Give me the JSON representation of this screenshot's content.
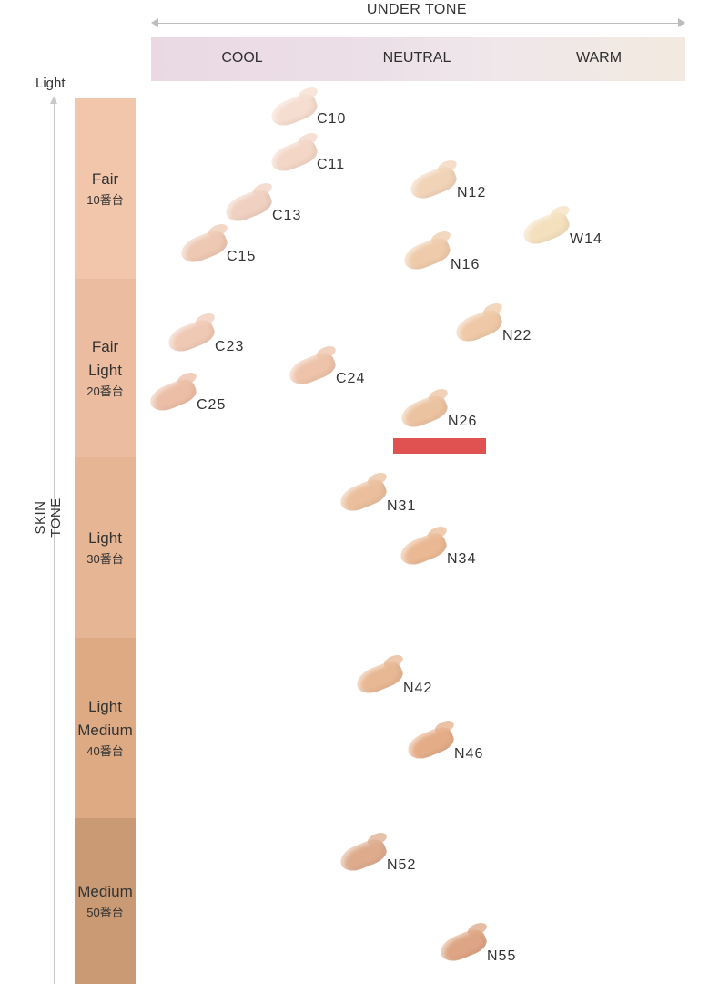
{
  "under_tone": {
    "title": "UNDER TONE",
    "bands": [
      "COOL",
      "NEUTRAL",
      "WARM"
    ]
  },
  "skin_tone": {
    "axis_label": "SKIN TONE",
    "light_label": "Light",
    "levels": [
      {
        "name_lines": [
          "Fair"
        ],
        "series": "10番台",
        "color": "#f2c6ab"
      },
      {
        "name_lines": [
          "Fair",
          "Light"
        ],
        "series": "20番台",
        "color": "#ebbc9f"
      },
      {
        "name_lines": [
          "Light"
        ],
        "series": "30番台",
        "color": "#e6b593"
      },
      {
        "name_lines": [
          "Light",
          "Medium"
        ],
        "series": "40番台",
        "color": "#ddaa84"
      },
      {
        "name_lines": [
          "Medium"
        ],
        "series": "50番台",
        "color": "#c99a74"
      }
    ]
  },
  "shades": [
    {
      "code": "C10",
      "color": "#f5ddcf"
    },
    {
      "code": "C11",
      "color": "#f3d6c6"
    },
    {
      "code": "C13",
      "color": "#f0d0c0"
    },
    {
      "code": "C15",
      "color": "#eec8b3"
    },
    {
      "code": "N12",
      "color": "#f1d3b8"
    },
    {
      "code": "N16",
      "color": "#efcbab"
    },
    {
      "code": "W14",
      "color": "#f4e0bd"
    },
    {
      "code": "C23",
      "color": "#f0c9b5"
    },
    {
      "code": "C24",
      "color": "#eec3aa"
    },
    {
      "code": "C25",
      "color": "#ecbea6"
    },
    {
      "code": "N22",
      "color": "#efc9a7"
    },
    {
      "code": "N26",
      "color": "#ecc3a1"
    },
    {
      "code": "N31",
      "color": "#ebbf9c"
    },
    {
      "code": "N34",
      "color": "#eab994"
    },
    {
      "code": "N42",
      "color": "#e8b793"
    },
    {
      "code": "N46",
      "color": "#e4ad88"
    },
    {
      "code": "N52",
      "color": "#deac8d"
    },
    {
      "code": "N55",
      "color": "#dda584"
    }
  ],
  "highlight": {
    "shade": "N26",
    "color": "#e05252"
  }
}
